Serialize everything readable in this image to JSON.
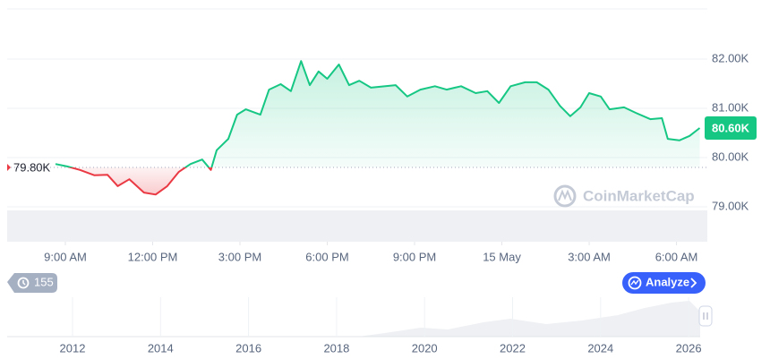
{
  "chart_data": {
    "type": "line",
    "x": [
      -0.34,
      0.06,
      0.5,
      1.0,
      1.45,
      1.8,
      2.2,
      2.7,
      3.1,
      3.5,
      3.9,
      4.3,
      4.7,
      5.0,
      5.2,
      5.6,
      5.9,
      6.2,
      6.7,
      7.0,
      7.4,
      7.75,
      8.1,
      8.4,
      8.7,
      9.0,
      9.4,
      9.75,
      10.1,
      10.5,
      11.0,
      11.35,
      11.75,
      12.2,
      12.7,
      13.1,
      13.6,
      14.1,
      14.5,
      14.9,
      15.3,
      15.8,
      16.2,
      16.6,
      17.0,
      17.35,
      17.7,
      18.0,
      18.4,
      18.7,
      19.2,
      19.6,
      20.1,
      20.5,
      20.7,
      21.1,
      21.45,
      21.8
    ],
    "values": [
      79870,
      79820,
      79750,
      79640,
      79650,
      79420,
      79560,
      79290,
      79250,
      79420,
      79710,
      79870,
      79960,
      79750,
      80150,
      80380,
      80870,
      80980,
      80870,
      81380,
      81490,
      81350,
      81960,
      81470,
      81750,
      81600,
      81890,
      81470,
      81560,
      81420,
      81450,
      81470,
      81240,
      81380,
      81450,
      81380,
      81450,
      81310,
      81350,
      81110,
      81450,
      81530,
      81530,
      81380,
      81050,
      80840,
      81020,
      81310,
      81240,
      80980,
      81020,
      80910,
      80780,
      80800,
      80380,
      80350,
      80440,
      80600
    ],
    "up_color": "#16c784",
    "down_color": "#ea3943",
    "baseline": {
      "value": 79800,
      "label": "79.80K"
    },
    "current": {
      "value": 80600,
      "label": "80.60K"
    },
    "xlim": [
      -2,
      22.06
    ],
    "xticks": [
      {
        "value": 0,
        "label": "9:00 AM"
      },
      {
        "value": 3,
        "label": "12:00 PM"
      },
      {
        "value": 6,
        "label": "3:00 PM"
      },
      {
        "value": 9,
        "label": "6:00 PM"
      },
      {
        "value": 12,
        "label": "9:00 PM"
      },
      {
        "value": 15,
        "label": "15 May"
      },
      {
        "value": 18,
        "label": "3:00 AM"
      },
      {
        "value": 21,
        "label": "6:00 AM"
      }
    ],
    "ylim": [
      79000,
      83000
    ],
    "yticks": [
      {
        "value": 79000,
        "label": "79.00K"
      },
      {
        "value": 80000,
        "label": "80.00K"
      },
      {
        "value": 81000,
        "label": "81.00K"
      },
      {
        "value": 82000,
        "label": "82.00K"
      }
    ],
    "grid": true
  },
  "watermark": "CoinMarketCap",
  "badge": "155",
  "button": "Analyze",
  "navigator_ticks": [
    "2012",
    "2014",
    "2016",
    "2018",
    "2020",
    "2022",
    "2024",
    "2026"
  ]
}
